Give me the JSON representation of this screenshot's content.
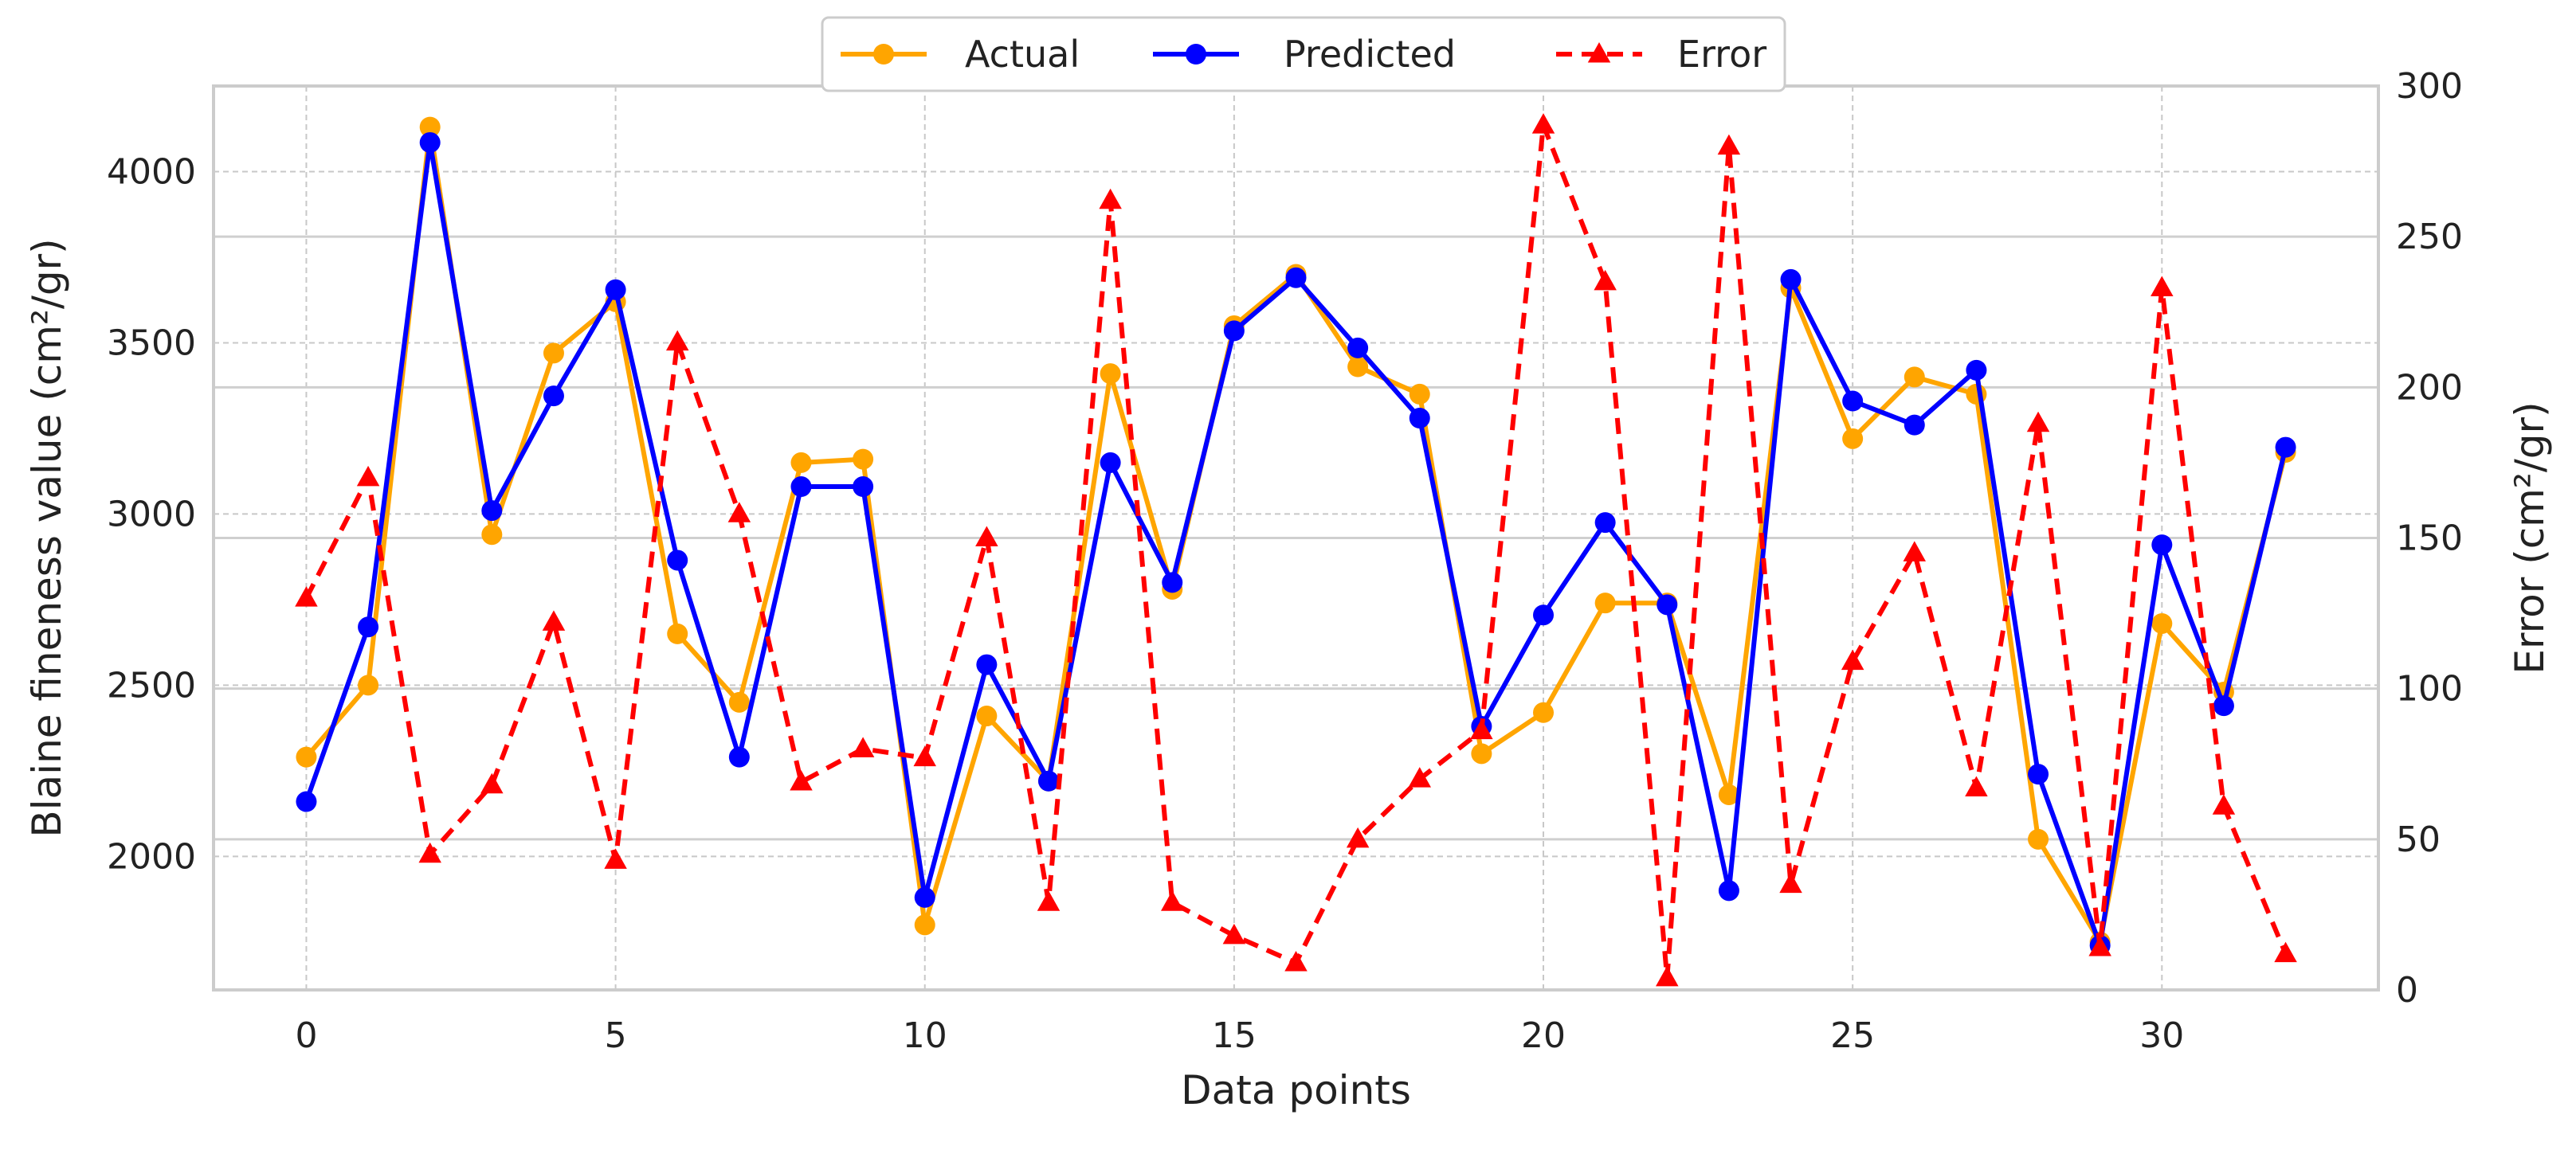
{
  "chart_data": {
    "type": "line",
    "x": [
      0,
      1,
      2,
      3,
      4,
      5,
      6,
      7,
      8,
      9,
      10,
      11,
      12,
      13,
      14,
      15,
      16,
      17,
      18,
      19,
      20,
      21,
      22,
      23,
      24,
      25,
      26,
      27,
      28,
      29,
      30,
      31,
      32
    ],
    "series": [
      {
        "name": "Actual",
        "color": "#FFA500",
        "marker": "circle",
        "line_style": "solid",
        "axis": "left",
        "values": [
          2290,
          2500,
          4130,
          2940,
          3470,
          3620,
          2650,
          2450,
          3150,
          3160,
          1800,
          2410,
          2220,
          3410,
          2780,
          3550,
          3700,
          3430,
          3350,
          2300,
          2420,
          2740,
          2740,
          2180,
          3660,
          3220,
          3400,
          3350,
          2050,
          1750,
          2680,
          2480,
          3180
        ]
      },
      {
        "name": "Predicted",
        "color": "#0000FF",
        "marker": "circle",
        "line_style": "solid",
        "axis": "left",
        "values": [
          2160,
          2670,
          4085,
          3010,
          3345,
          3655,
          2865,
          2290,
          3080,
          3080,
          1880,
          2560,
          2220,
          3150,
          2800,
          3535,
          3690,
          3485,
          3280,
          2380,
          2705,
          2975,
          2735,
          1900,
          3685,
          3330,
          3260,
          3420,
          2240,
          1740,
          2910,
          2440,
          3195
        ]
      },
      {
        "name": "Error",
        "color": "#FF0000",
        "marker": "triangle",
        "line_style": "dashed",
        "axis": "right",
        "values": [
          130,
          170,
          45,
          68,
          122,
          43,
          215,
          158,
          69,
          80,
          77,
          150,
          29,
          262,
          29,
          18,
          9,
          50,
          70,
          86,
          287,
          235,
          4,
          280,
          35,
          109,
          145,
          67,
          188,
          14,
          233,
          61,
          12
        ]
      }
    ],
    "xlabel": "Data points",
    "ylabel": "Blaine fineness value (cm²/gr)",
    "ylabel_right": "Error (cm²/gr)",
    "xlim": [
      -1.5,
      33.5
    ],
    "ylim": [
      1610,
      4250
    ],
    "ylim_right": [
      0,
      300
    ],
    "x_ticks": [
      0,
      5,
      10,
      15,
      20,
      25,
      30
    ],
    "y_ticks": [
      2000,
      2500,
      3000,
      3500,
      4000
    ],
    "y_ticks_right": [
      0,
      50,
      100,
      150,
      200,
      250,
      300
    ],
    "grid": true,
    "legend_position": "top-center"
  }
}
